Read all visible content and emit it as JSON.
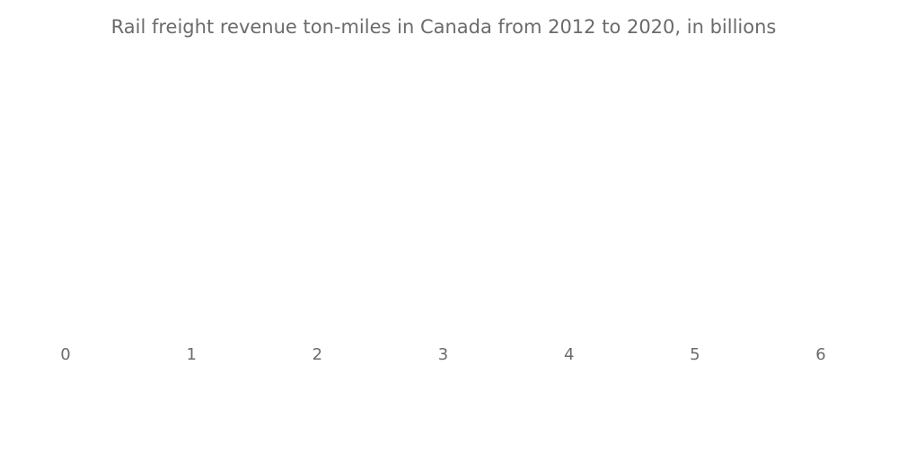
{
  "chart_data": {
    "type": "bar",
    "title": "Rail freight revenue ton-miles in Canada from 2012 to 2020, in billions",
    "xlim": [
      0,
      6
    ],
    "xticks": [
      0,
      1,
      2,
      3,
      4,
      5,
      6
    ]
  }
}
